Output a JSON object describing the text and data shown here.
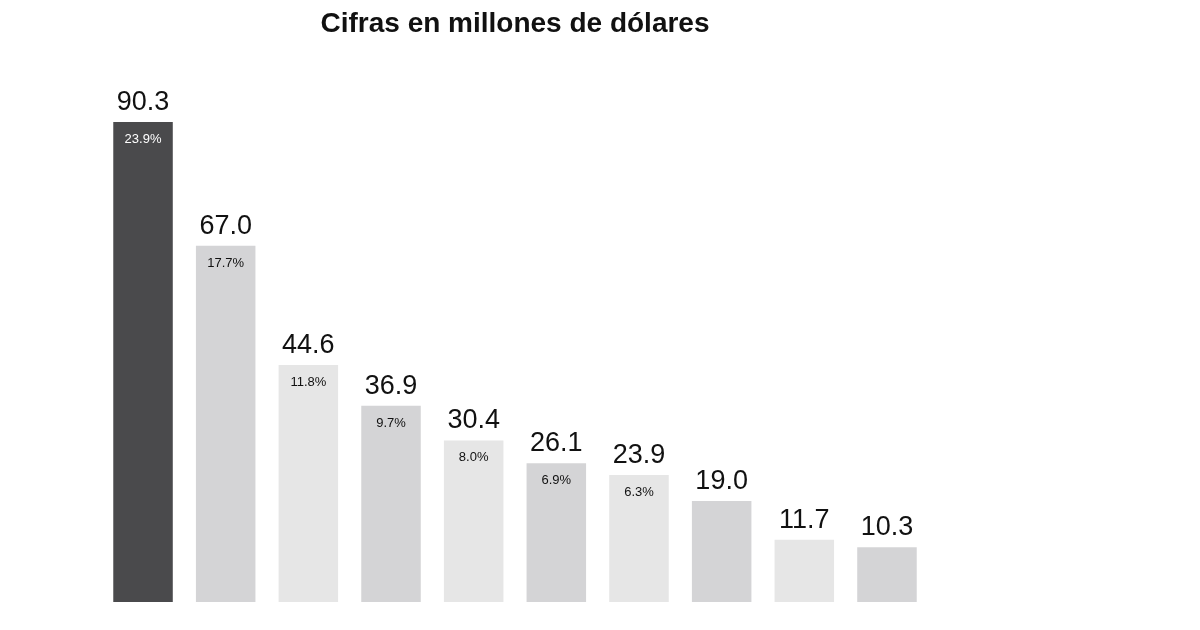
{
  "chart_data": {
    "type": "bar",
    "title": "Cifras en millones de dólares",
    "categories": [
      null,
      null,
      null,
      null,
      null,
      null,
      null,
      null,
      null,
      null
    ],
    "values": [
      90.3,
      67.0,
      44.6,
      36.9,
      30.4,
      26.1,
      23.9,
      19.0,
      11.7,
      10.3
    ],
    "colors": [
      "#4a4a4c",
      "#d4d4d6",
      "#e6e6e6",
      "#d4d4d6",
      "#e6e6e6",
      "#d4d4d6",
      "#e6e6e6",
      "#d4d4d6",
      "#e6e6e6",
      "#d4d4d6"
    ],
    "value_labels": [
      "90.3",
      "67.0",
      "44.6",
      "36.9",
      "30.4",
      "26.1",
      "23.9",
      "19.0",
      "11.7",
      "10.3"
    ],
    "annotations": [
      {
        "text": "23.9%"
      },
      {
        "text": "17.7%"
      },
      {
        "text": "11.8%"
      },
      {
        "text": "9.7%"
      },
      {
        "text": "8.0%"
      },
      {
        "text": "6.9%"
      },
      {
        "text": "6.3%"
      }
    ]
  }
}
